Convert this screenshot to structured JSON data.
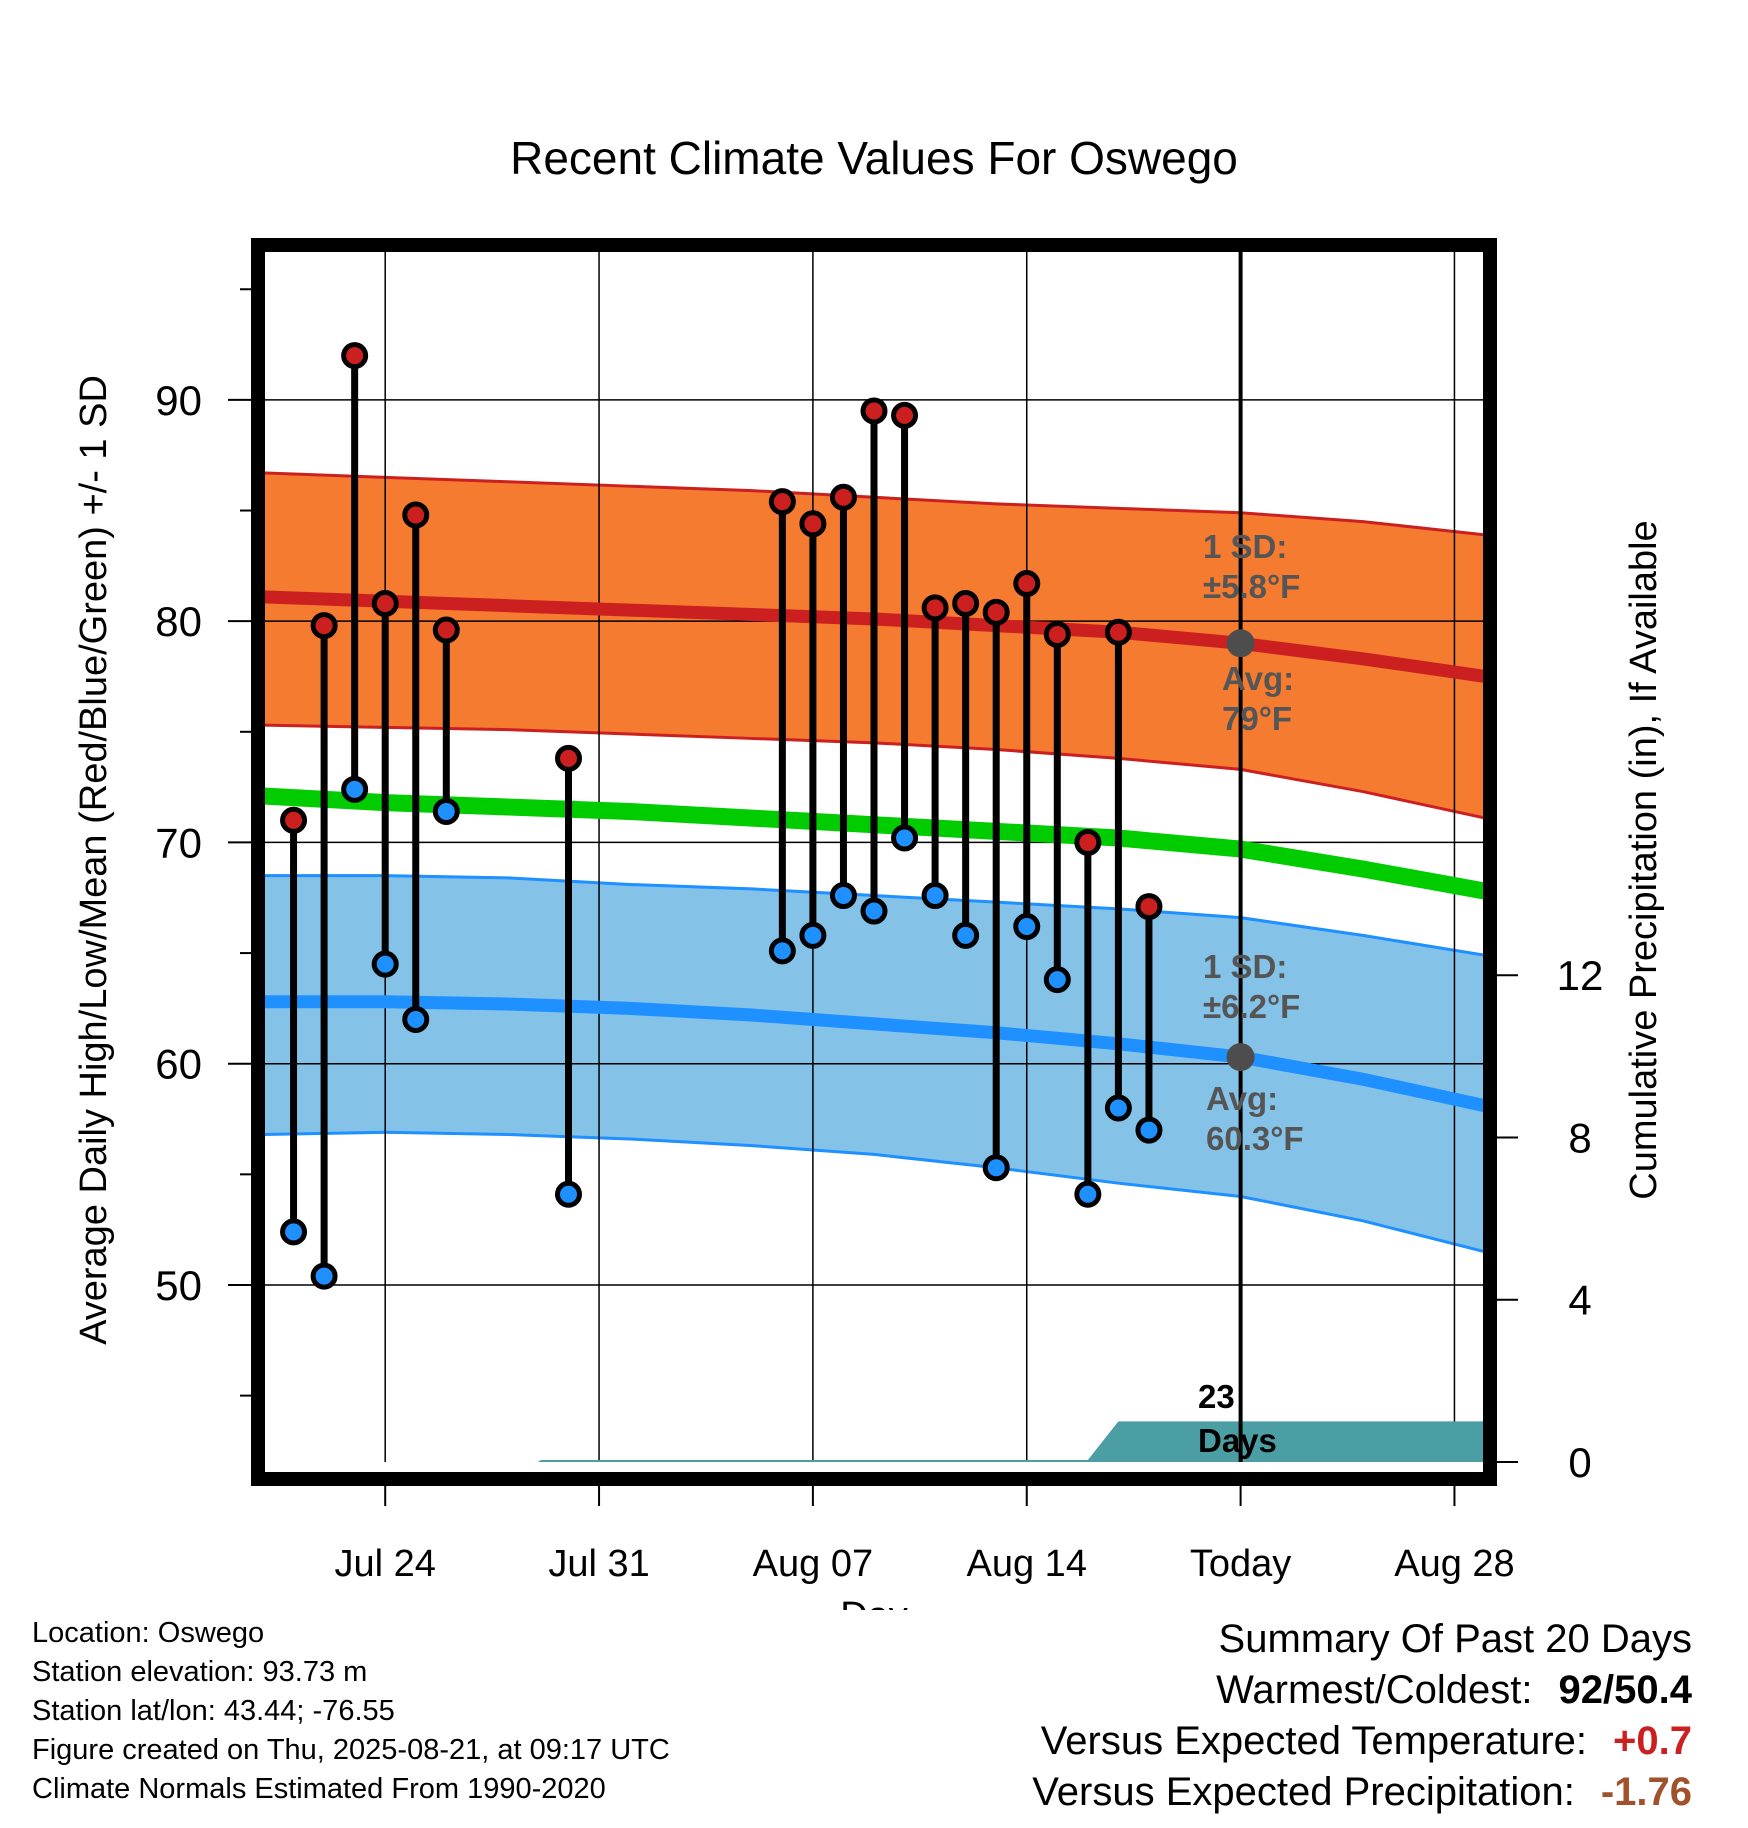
{
  "chart_data": {
    "type": "line",
    "title": "Recent Climate Values For Oswego",
    "xlabel": "Day",
    "ylabel": "Average Daily High/Low/Mean (Red/Blue/Green) +/- 1 SD",
    "y2label": "Cumulative Precipitation (in), If Available",
    "x_start": "Jul 20",
    "x_end": "Aug 30",
    "ylim": [
      42,
      97
    ],
    "y2lim": [
      0,
      30
    ],
    "grid": true,
    "x_tick_labels": [
      {
        "day": 4,
        "label": "Jul 24"
      },
      {
        "day": 11,
        "label": "Jul 31"
      },
      {
        "day": 18,
        "label": "Aug 07"
      },
      {
        "day": 25,
        "label": "Aug 14"
      },
      {
        "day": 32,
        "label": "Today"
      },
      {
        "day": 39,
        "label": "Aug 28"
      }
    ],
    "y_tick_labels": [
      50,
      60,
      70,
      80,
      90
    ],
    "y2_tick_labels": [
      0,
      4,
      8,
      12
    ],
    "normals": {
      "days": [
        0,
        4,
        8,
        12,
        16,
        20,
        24,
        28,
        32,
        36,
        40
      ],
      "high_mean": [
        81.1,
        80.9,
        80.7,
        80.5,
        80.3,
        80.1,
        79.8,
        79.5,
        79.0,
        78.3,
        77.5
      ],
      "high_upper": [
        86.7,
        86.5,
        86.3,
        86.1,
        85.9,
        85.6,
        85.3,
        85.1,
        84.9,
        84.5,
        83.9
      ],
      "high_lower": [
        75.3,
        75.2,
        75.1,
        74.9,
        74.7,
        74.5,
        74.2,
        73.8,
        73.3,
        72.3,
        71.1
      ],
      "mean": [
        72.1,
        71.8,
        71.6,
        71.4,
        71.1,
        70.8,
        70.5,
        70.2,
        69.7,
        68.8,
        67.8
      ],
      "low_mean": [
        62.8,
        62.8,
        62.7,
        62.5,
        62.2,
        61.8,
        61.4,
        60.9,
        60.3,
        59.3,
        58.1
      ],
      "low_upper": [
        68.5,
        68.5,
        68.4,
        68.1,
        67.9,
        67.6,
        67.3,
        67.0,
        66.6,
        65.8,
        64.9
      ],
      "low_lower": [
        56.8,
        56.9,
        56.8,
        56.6,
        56.3,
        55.9,
        55.3,
        54.6,
        54.0,
        52.9,
        51.5
      ]
    },
    "series": [
      {
        "name": "High",
        "color": "#cc2020",
        "points": [
          {
            "day": 1,
            "value": 71.0
          },
          {
            "day": 2,
            "value": 79.8
          },
          {
            "day": 3,
            "value": 92.0
          },
          {
            "day": 4,
            "value": 80.8
          },
          {
            "day": 5,
            "value": 84.8
          },
          {
            "day": 6,
            "value": 79.6
          },
          {
            "day": 10,
            "value": 73.8
          },
          {
            "day": 17,
            "value": 85.4
          },
          {
            "day": 18,
            "value": 84.4
          },
          {
            "day": 19,
            "value": 85.6
          },
          {
            "day": 20,
            "value": 89.5
          },
          {
            "day": 21,
            "value": 89.3
          },
          {
            "day": 22,
            "value": 80.6
          },
          {
            "day": 23,
            "value": 80.8
          },
          {
            "day": 24,
            "value": 80.4
          },
          {
            "day": 25,
            "value": 81.7
          },
          {
            "day": 26,
            "value": 79.4
          },
          {
            "day": 27,
            "value": 70.0
          },
          {
            "day": 28,
            "value": 79.5
          },
          {
            "day": 29,
            "value": 67.1
          }
        ]
      },
      {
        "name": "Low",
        "color": "#1e90ff",
        "points": [
          {
            "day": 1,
            "value": 52.4
          },
          {
            "day": 2,
            "value": 50.4
          },
          {
            "day": 3,
            "value": 72.4
          },
          {
            "day": 4,
            "value": 64.5
          },
          {
            "day": 5,
            "value": 62.0
          },
          {
            "day": 6,
            "value": 71.4
          },
          {
            "day": 10,
            "value": 54.1
          },
          {
            "day": 17,
            "value": 65.1
          },
          {
            "day": 18,
            "value": 65.8
          },
          {
            "day": 19,
            "value": 67.6
          },
          {
            "day": 20,
            "value": 66.9
          },
          {
            "day": 21,
            "value": 70.2
          },
          {
            "day": 22,
            "value": 67.6
          },
          {
            "day": 23,
            "value": 65.8
          },
          {
            "day": 24,
            "value": 55.3
          },
          {
            "day": 25,
            "value": 66.2
          },
          {
            "day": 26,
            "value": 63.8
          },
          {
            "day": 27,
            "value": 54.1
          },
          {
            "day": 28,
            "value": 58.0
          },
          {
            "day": 29,
            "value": 57.0
          }
        ]
      }
    ],
    "precipitation": {
      "color": "#4a9ea4",
      "points": [
        {
          "day": 0,
          "value": 0.0
        },
        {
          "day": 9,
          "value": 0.0
        },
        {
          "day": 9.1,
          "value": 0.05
        },
        {
          "day": 27,
          "value": 0.05
        },
        {
          "day": 28,
          "value": 1.0
        },
        {
          "day": 29,
          "value": 1.0
        },
        {
          "day": 32,
          "value": 1.0
        },
        {
          "day": 40,
          "value": 1.0
        }
      ]
    },
    "today_day": 32,
    "today_high_avg": 79,
    "today_low_avg": 60.3,
    "annotations": {
      "high_sd_label": "1 SD:",
      "high_sd_value": "±5.8°F",
      "high_avg_label": "Avg:",
      "high_avg_value": "79°F",
      "low_sd_label": "1 SD:",
      "low_sd_value": "±6.2°F",
      "low_avg_label": "Avg:",
      "low_avg_value": "60.3°F",
      "days_count": "23",
      "days_label": "Days"
    },
    "colors": {
      "high_band": "#f47b30",
      "high_line": "#cc2020",
      "mean_line": "#00cc00",
      "low_band": "#84c2e8",
      "low_line": "#1e90ff",
      "today_dot": "#4d4d4d",
      "annotation_text": "#555555"
    }
  },
  "info": {
    "location": "Location: Oswego",
    "elevation": "Station elevation: 93.73 m",
    "latlon": "Station lat/lon: 43.44; -76.55",
    "created": "Figure created on Thu, 2025-08-21, at 09:17 UTC",
    "normals": "Climate Normals Estimated From 1990-2020"
  },
  "summary": {
    "heading": "Summary Of Past 20 Days",
    "warmest_label": "Warmest/Coldest:",
    "warmest_value": "92/50.4",
    "temp_label": "Versus Expected Temperature:",
    "temp_value": "+0.7",
    "temp_color": "#cc2020",
    "precip_label": "Versus Expected Precipitation:",
    "precip_value": "-1.76",
    "precip_color": "#a0522d"
  }
}
